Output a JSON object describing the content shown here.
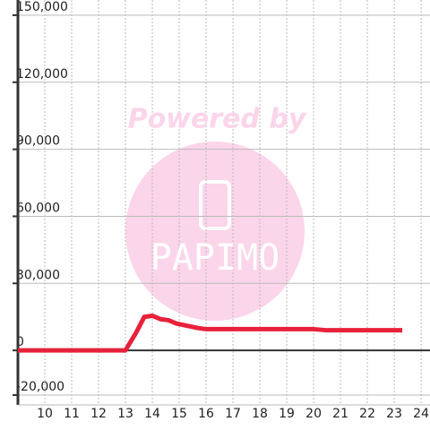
{
  "chart_data": {
    "type": "line",
    "watermark": [
      "Powered by",
      "PAPIMO"
    ],
    "x": [
      9,
      13,
      13.4,
      13.7,
      14,
      14.3,
      14.6,
      14.9,
      15.3,
      15.7,
      16,
      20,
      20.5,
      23.3
    ],
    "series": [
      {
        "color": "#e8213a",
        "values": [
          0,
          0,
          8000,
          15000,
          15500,
          14000,
          13500,
          12000,
          11000,
          10000,
          9500,
          9500,
          9000,
          9000
        ]
      }
    ],
    "xlim": [
      9,
      24.33
    ],
    "xticks": [
      10,
      11,
      12,
      13,
      14,
      15,
      16,
      17,
      18,
      19,
      20,
      21,
      22,
      23,
      24
    ],
    "ylim": [
      -24400,
      156800
    ],
    "yticks": [
      {
        "value": -20000,
        "label": "-20,000"
      },
      0,
      {
        "value": 30000,
        "label": "30,000"
      },
      {
        "value": 60000,
        "label": "60,000"
      },
      {
        "value": 90000,
        "label": "90,000"
      },
      {
        "value": 120000,
        "label": "120,000"
      },
      {
        "value": 150000,
        "label": "150,000"
      }
    ],
    "grid": true
  }
}
